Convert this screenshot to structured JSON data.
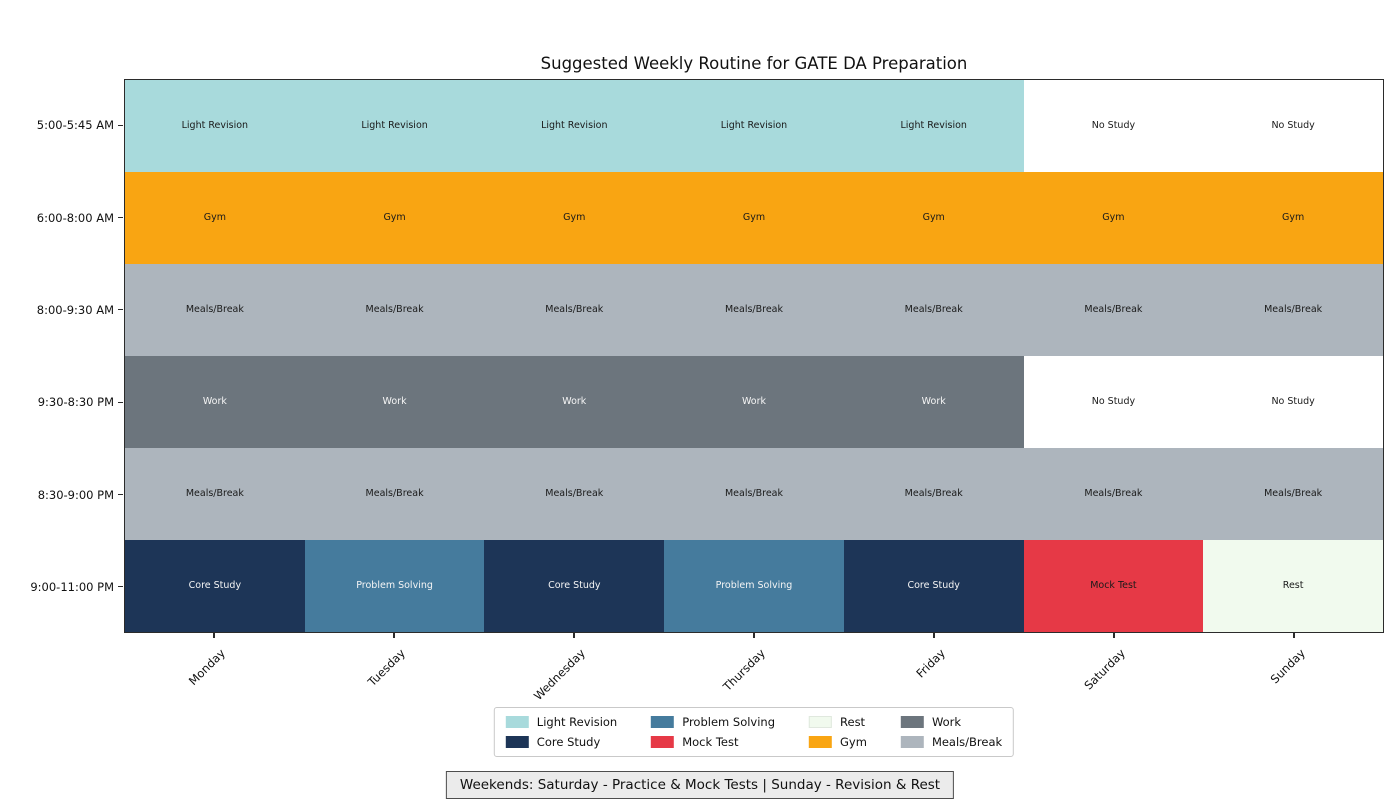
{
  "title": "Suggested Weekly Routine for GATE DA Preparation",
  "footer_note": "Weekends: Saturday - Practice & Mock Tests | Sunday - Revision & Rest",
  "chart_data": {
    "type": "heatmap",
    "title": "Suggested Weekly Routine for GATE DA Preparation",
    "x_categories": [
      "Monday",
      "Tuesday",
      "Wednesday",
      "Thursday",
      "Friday",
      "Saturday",
      "Sunday"
    ],
    "y_categories": [
      "5:00-5:45 AM",
      "6:00-8:00 AM",
      "8:00-9:30 AM",
      "9:30-8:30 PM",
      "8:30-9:00 PM",
      "9:00-11:00 PM"
    ],
    "cells": [
      [
        "Light Revision",
        "Light Revision",
        "Light Revision",
        "Light Revision",
        "Light Revision",
        "No Study",
        "No Study"
      ],
      [
        "Gym",
        "Gym",
        "Gym",
        "Gym",
        "Gym",
        "Gym",
        "Gym"
      ],
      [
        "Meals/Break",
        "Meals/Break",
        "Meals/Break",
        "Meals/Break",
        "Meals/Break",
        "Meals/Break",
        "Meals/Break"
      ],
      [
        "Work",
        "Work",
        "Work",
        "Work",
        "Work",
        "No Study",
        "No Study"
      ],
      [
        "Meals/Break",
        "Meals/Break",
        "Meals/Break",
        "Meals/Break",
        "Meals/Break",
        "Meals/Break",
        "Meals/Break"
      ],
      [
        "Core Study",
        "Problem Solving",
        "Core Study",
        "Problem Solving",
        "Core Study",
        "Mock Test",
        "Rest"
      ]
    ],
    "activities": {
      "Light Revision": {
        "color": "#A8DADC",
        "text_color": "#1a1a1a"
      },
      "Core Study": {
        "color": "#1D3557",
        "text_color": "#f5f5f5"
      },
      "Problem Solving": {
        "color": "#457B9D",
        "text_color": "#f5f5f5"
      },
      "Mock Test": {
        "color": "#E63946",
        "text_color": "#1a1a1a"
      },
      "Rest": {
        "color": "#F1FAEE",
        "text_color": "#1a1a1a"
      },
      "Gym": {
        "color": "#F9A512",
        "text_color": "#1a1a1a"
      },
      "Work": {
        "color": "#6C757D",
        "text_color": "#f5f5f5"
      },
      "Meals/Break": {
        "color": "#ADB5BD",
        "text_color": "#1a1a1a"
      },
      "No Study": {
        "color": "#FFFFFF",
        "text_color": "#1a1a1a"
      }
    },
    "legend_entries": [
      "Light Revision",
      "Problem Solving",
      "Rest",
      "Work",
      "Core Study",
      "Mock Test",
      "Gym",
      "Meals/Break"
    ],
    "legend_position": "bottom-center",
    "grid": false,
    "axis_style": {
      "x_label_rotation_deg": 45,
      "tick_color": "#2b2b2b"
    }
  }
}
